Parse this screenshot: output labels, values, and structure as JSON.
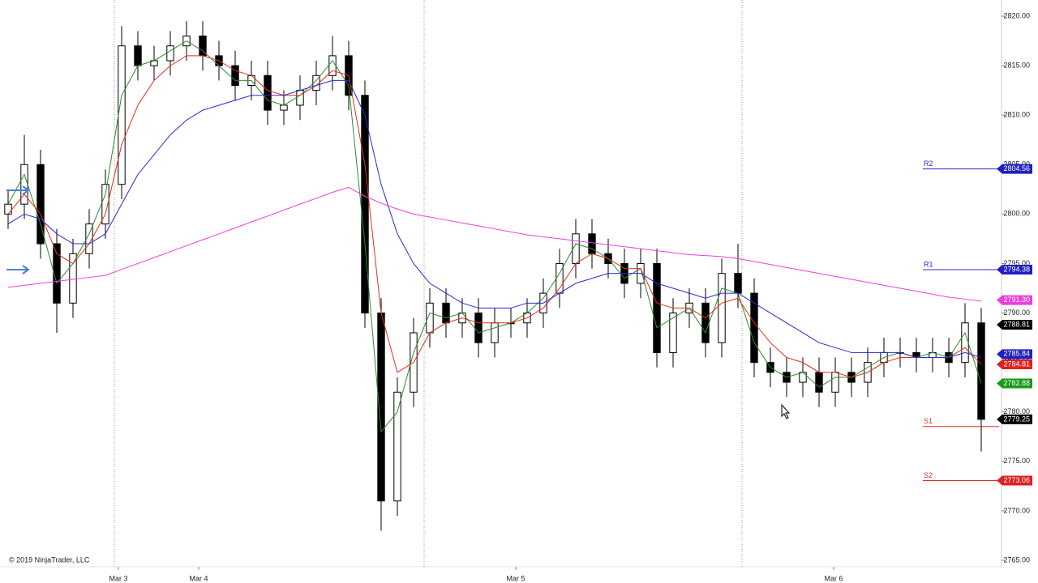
{
  "chart_data": {
    "type": "candlestick",
    "copyright": "© 2019 NinjaTrader, LLC",
    "open": [
      2800,
      2801,
      2805,
      2797,
      2791,
      2796,
      2799,
      2803,
      2817,
      2815,
      2815.5,
      2817,
      2818,
      2816,
      2815,
      2813,
      2814,
      2810.5,
      2811,
      2812.5,
      2814,
      2816,
      2812,
      2790,
      2771,
      2782,
      2788,
      2791,
      2789,
      2790,
      2787,
      2789,
      2789,
      2790,
      2792,
      2795,
      2798,
      2796,
      2795,
      2793,
      2795,
      2786,
      2790,
      2791,
      2787,
      2794,
      2792,
      2785,
      2784,
      2783,
      2784,
      2782,
      2784,
      2783,
      2785,
      2786,
      2786,
      2785.5,
      2786,
      2785,
      2789
    ],
    "high": [
      2802.5,
      2808,
      2806.5,
      2798.5,
      2797.5,
      2800.5,
      2804.5,
      2819,
      2818.5,
      2817,
      2818.5,
      2819.5,
      2819.5,
      2817.5,
      2816.5,
      2815.5,
      2815.5,
      2812.5,
      2814,
      2815.5,
      2818,
      2817.5,
      2813.5,
      2791.5,
      2783.5,
      2789.5,
      2792.5,
      2792.5,
      2791.5,
      2791.5,
      2790.5,
      2790.5,
      2791.5,
      2793.5,
      2796.5,
      2799.5,
      2799.5,
      2797.5,
      2796.5,
      2796.5,
      2796.5,
      2791.5,
      2792.5,
      2792.5,
      2795.5,
      2797,
      2793.5,
      2786.5,
      2785.5,
      2785.5,
      2785.5,
      2785.5,
      2785.5,
      2786.5,
      2787.5,
      2787.5,
      2787.5,
      2787.5,
      2787.5,
      2791,
      2790.5
    ],
    "low": [
      2798.5,
      2799.5,
      2795.5,
      2788,
      2789.5,
      2794.5,
      2797.5,
      2801.5,
      2813.5,
      2813.5,
      2814,
      2815.5,
      2814.5,
      2813.5,
      2811.5,
      2811.5,
      2809,
      2809,
      2809.5,
      2811,
      2812.5,
      2810.5,
      2788.5,
      2768,
      2769.5,
      2780.5,
      2786.5,
      2787.5,
      2787.5,
      2785.5,
      2785.5,
      2787.5,
      2787.5,
      2788.5,
      2790.5,
      2793.5,
      2794.5,
      2793.5,
      2791.5,
      2791.5,
      2784.5,
      2784.5,
      2788.5,
      2785.5,
      2785.5,
      2790.5,
      2783.5,
      2782.5,
      2781.5,
      2781.5,
      2780.5,
      2780.5,
      2781.5,
      2781.5,
      2783.5,
      2784.5,
      2784,
      2784,
      2783.5,
      2783.5,
      2776
    ],
    "close": [
      2801,
      2805,
      2797,
      2791,
      2796,
      2799,
      2803,
      2817,
      2815,
      2815.5,
      2817,
      2818,
      2816,
      2815,
      2813,
      2814,
      2810.5,
      2811,
      2812.5,
      2814,
      2816,
      2812,
      2790,
      2771,
      2782,
      2788,
      2791,
      2789,
      2790,
      2787,
      2789,
      2789,
      2790,
      2792,
      2795,
      2798,
      2796,
      2795,
      2793,
      2795,
      2786,
      2790,
      2791,
      2787,
      2794,
      2792,
      2785,
      2784,
      2783,
      2784,
      2782,
      2784,
      2783,
      2785,
      2786,
      2786,
      2785.5,
      2786,
      2785,
      2789,
      2779.25
    ],
    "lines": [
      {
        "color": "#2e8b2e",
        "values": [
          2801,
          2804,
          2799,
          2793,
          2795,
          2798,
          2802,
          2812,
          2815,
          2815.5,
          2816.5,
          2817.5,
          2816.5,
          2815,
          2813.5,
          2813.5,
          2811.5,
          2811,
          2812,
          2813.5,
          2815.5,
          2813,
          2797,
          2778,
          2780,
          2786,
          2790,
          2789.5,
          2790,
          2788,
          2788.5,
          2789,
          2790,
          2791.5,
          2794,
          2797,
          2796.5,
          2795.5,
          2793.5,
          2794.5,
          2788.5,
          2789.5,
          2790.5,
          2788,
          2792.5,
          2792,
          2787,
          2784.5,
          2783.5,
          2784,
          2782.5,
          2783.5,
          2783.5,
          2784.5,
          2785.5,
          2786,
          2785.5,
          2786,
          2785.5,
          2788,
          2782.9
        ]
      },
      {
        "color": "#e0301e",
        "values": [
          2800,
          2802,
          2800,
          2796,
          2795,
          2797,
          2800,
          2807,
          2811,
          2813.5,
          2815,
          2816,
          2816,
          2815.5,
          2814.5,
          2814,
          2812.5,
          2812,
          2812,
          2813,
          2814.5,
          2814,
          2805,
          2790,
          2784,
          2785,
          2788,
          2789,
          2789.5,
          2789,
          2789,
          2789,
          2789.5,
          2790.5,
          2792.5,
          2795,
          2796,
          2795.5,
          2794.5,
          2794.5,
          2791,
          2790.5,
          2790.5,
          2789.5,
          2791,
          2791.5,
          2789,
          2787,
          2785.5,
          2785,
          2784,
          2784,
          2783.5,
          2784,
          2785,
          2785.5,
          2785.5,
          2785.5,
          2785.5,
          2786.5,
          2784.8
        ]
      },
      {
        "color": "#2a2ad0",
        "values": [
          2799,
          2800,
          2799.5,
          2798,
          2797,
          2797,
          2798,
          2801,
          2804,
          2806,
          2808,
          2809.5,
          2810.5,
          2811,
          2811.5,
          2812,
          2812,
          2812,
          2812.5,
          2813,
          2813.5,
          2813.5,
          2810,
          2803,
          2798,
          2795,
          2793,
          2792,
          2791,
          2790.5,
          2790.5,
          2790.5,
          2791,
          2791,
          2792,
          2793,
          2793.5,
          2794,
          2794,
          2794,
          2793,
          2792.5,
          2792,
          2791.5,
          2792,
          2792,
          2791,
          2790,
          2789,
          2788,
          2787,
          2786.5,
          2786,
          2786,
          2786,
          2786,
          2785.5,
          2785.5,
          2785.5,
          2786,
          2785.5
        ]
      },
      {
        "color": "#ee3ee0",
        "values": [
          2792.6,
          2792.8,
          2793.0,
          2793.2,
          2793.4,
          2793.6,
          2793.8,
          2794.4,
          2795.0,
          2795.6,
          2796.2,
          2796.8,
          2797.4,
          2798.0,
          2798.6,
          2799.2,
          2799.8,
          2800.4,
          2801.0,
          2801.6,
          2802.2,
          2802.7,
          2801.8,
          2801.1,
          2800.5,
          2800.0,
          2799.7,
          2799.4,
          2799.1,
          2798.8,
          2798.5,
          2798.2,
          2797.9,
          2797.7,
          2797.5,
          2797.3,
          2797.1,
          2796.9,
          2796.7,
          2796.5,
          2796.3,
          2796.1,
          2795.9,
          2795.8,
          2795.7,
          2795.5,
          2795.2,
          2794.9,
          2794.6,
          2794.3,
          2794.0,
          2793.7,
          2793.4,
          2793.1,
          2792.8,
          2792.5,
          2792.2,
          2791.9,
          2791.6,
          2791.4,
          2791.2
        ]
      }
    ],
    "pivots": [
      {
        "name": "R2",
        "value": 2804.56,
        "color": "#2a2ad0"
      },
      {
        "name": "R1",
        "value": 2794.38,
        "color": "#2a2ad0"
      },
      {
        "name": "S1",
        "value": 2778.53,
        "color": "#e0301e"
      },
      {
        "name": "S2",
        "value": 2773.06,
        "color": "#e0301e"
      }
    ],
    "price_markers": [
      {
        "value": 2804.56,
        "label": "2804.56",
        "color": "#2020c0"
      },
      {
        "value": 2794.38,
        "label": "2794.38",
        "color": "#2020c0"
      },
      {
        "value": 2791.3,
        "label": "2791.30",
        "color": "#ee3ee0"
      },
      {
        "value": 2788.81,
        "label": "2788.81",
        "color": "#000000"
      },
      {
        "value": 2785.84,
        "label": "2785.84",
        "color": "#2020c0"
      },
      {
        "value": 2784.81,
        "label": "2784.81",
        "color": "#e02020"
      },
      {
        "value": 2782.88,
        "label": "2782.88",
        "color": "#1a9a1a"
      },
      {
        "value": 2779.25,
        "label": "2779.25",
        "color": "#000000"
      },
      {
        "value": 2773.06,
        "label": "2773.06",
        "color": "#e02020"
      }
    ],
    "xlim": [
      0,
      61.75
    ],
    "xticks": [
      {
        "value": 7.3,
        "label": "Mar 3"
      },
      {
        "value": 12.25,
        "label": "Mar 4"
      },
      {
        "value": 31.8,
        "label": "Mar 5"
      },
      {
        "value": 51.4,
        "label": "Mar 6"
      }
    ],
    "ylim": [
      2765,
      2820
    ],
    "yticks": [
      {
        "value": 2765,
        "label": "2765.00"
      },
      {
        "value": 2770,
        "label": "2770.00"
      },
      {
        "value": 2775,
        "label": "2775.00"
      },
      {
        "value": 2780,
        "label": "2780.00"
      },
      {
        "value": 2785,
        "label": "2785.00"
      },
      {
        "value": 2790,
        "label": "2790.00"
      },
      {
        "value": 2795,
        "label": "2795.00"
      },
      {
        "value": 2800,
        "label": "2800.00"
      },
      {
        "value": 2805,
        "label": "2805.00"
      },
      {
        "value": 2810,
        "label": "2810.00"
      },
      {
        "value": 2815,
        "label": "2815.00"
      },
      {
        "value": 2820,
        "label": "2820.00"
      }
    ]
  }
}
